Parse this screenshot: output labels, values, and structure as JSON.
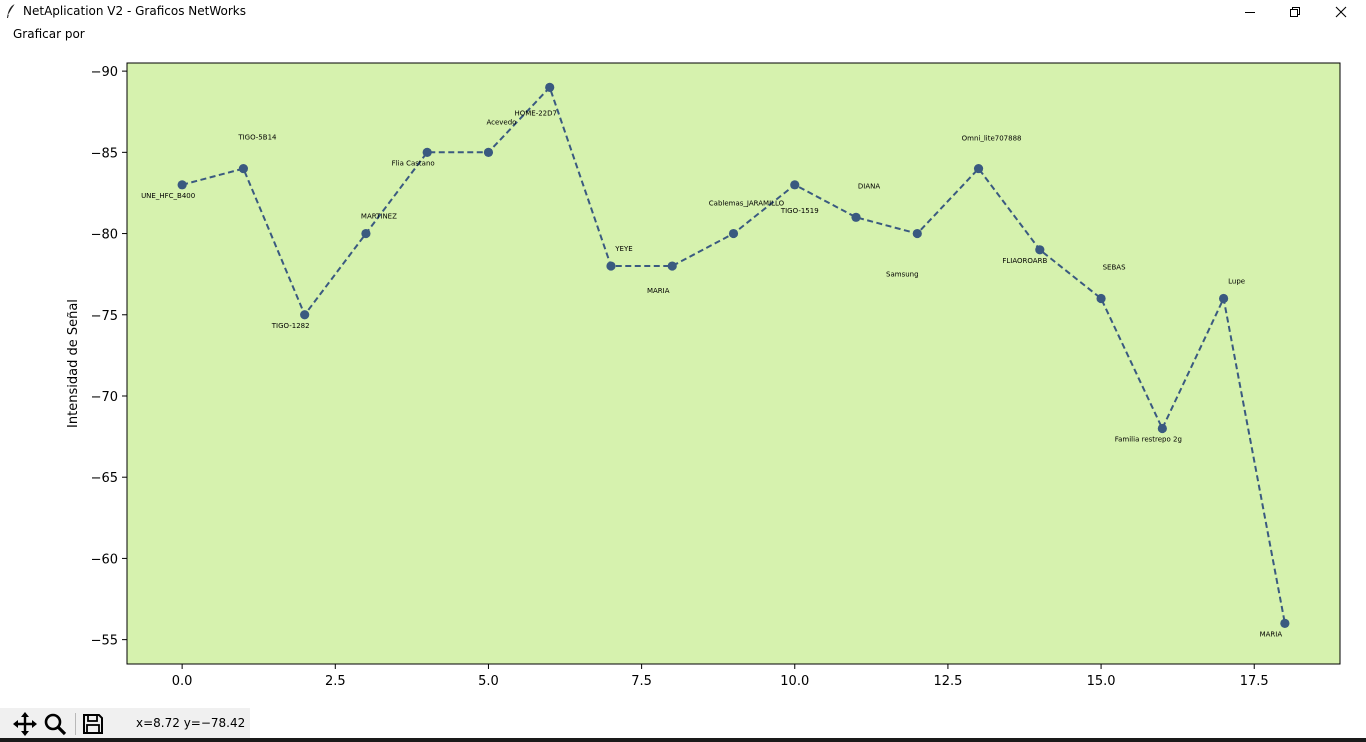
{
  "window": {
    "title": "NetAplication V2 - Graficos NetWorks",
    "icon": "feather-icon",
    "controls": [
      "minimize-icon",
      "restore-icon",
      "close-icon"
    ]
  },
  "menu": {
    "items": [
      {
        "label": "Graficar por"
      }
    ]
  },
  "chart_data": {
    "type": "line",
    "ylabel": "Intensidad de Señal",
    "xlabel": "",
    "title": "",
    "x": [
      0,
      1,
      2,
      3,
      4,
      5,
      6,
      7,
      8,
      9,
      10,
      11,
      12,
      13,
      14,
      15,
      16,
      17,
      18
    ],
    "y": [
      -83,
      -84,
      -75,
      -80,
      -85,
      -85,
      -89,
      -78,
      -78,
      -80,
      -83,
      -81,
      -80,
      -84,
      -79,
      -76,
      -68,
      -76,
      -56
    ],
    "labels": [
      "UNE_HFC_B400",
      "TIGO-5B14",
      "TIGO-1282",
      "MARTINEZ",
      "Flia Castano",
      "Acevedo",
      "HOME-22D7",
      "YEYE",
      "MARIA",
      "Cablemas_JARAMILLO",
      "TIGO-1519",
      "DIANA",
      "Samsung",
      "Omni_lite707888",
      "FLIAOROARB",
      "SEBAS",
      "Familia restrepo 2g",
      "Lupe",
      "MARIA"
    ],
    "xlim": [
      -0.9,
      18.9
    ],
    "ylim": [
      -53.5,
      -90.5
    ],
    "inverted_y": true,
    "xticks": [
      0,
      2.5,
      5,
      7.5,
      10,
      12.5,
      15,
      17.5
    ],
    "xtick_labels": [
      "0.0",
      "2.5",
      "5.0",
      "7.5",
      "10.0",
      "12.5",
      "15.0",
      "17.5"
    ],
    "yticks": [
      -90,
      -85,
      -80,
      -75,
      -70,
      -65,
      -60,
      -55
    ],
    "ytick_labels": [
      "−90",
      "−85",
      "−80",
      "−75",
      "−70",
      "−65",
      "−60",
      "−55"
    ],
    "line_style": "dashed",
    "marker": "circle",
    "line_color": "#3a5a80",
    "background_color": "#d6f2ae",
    "grid": false
  },
  "toolbar": {
    "buttons": [
      "pan-icon",
      "zoom-icon",
      "save-icon"
    ],
    "coords_text": "x=8.72 y=−78.42"
  }
}
